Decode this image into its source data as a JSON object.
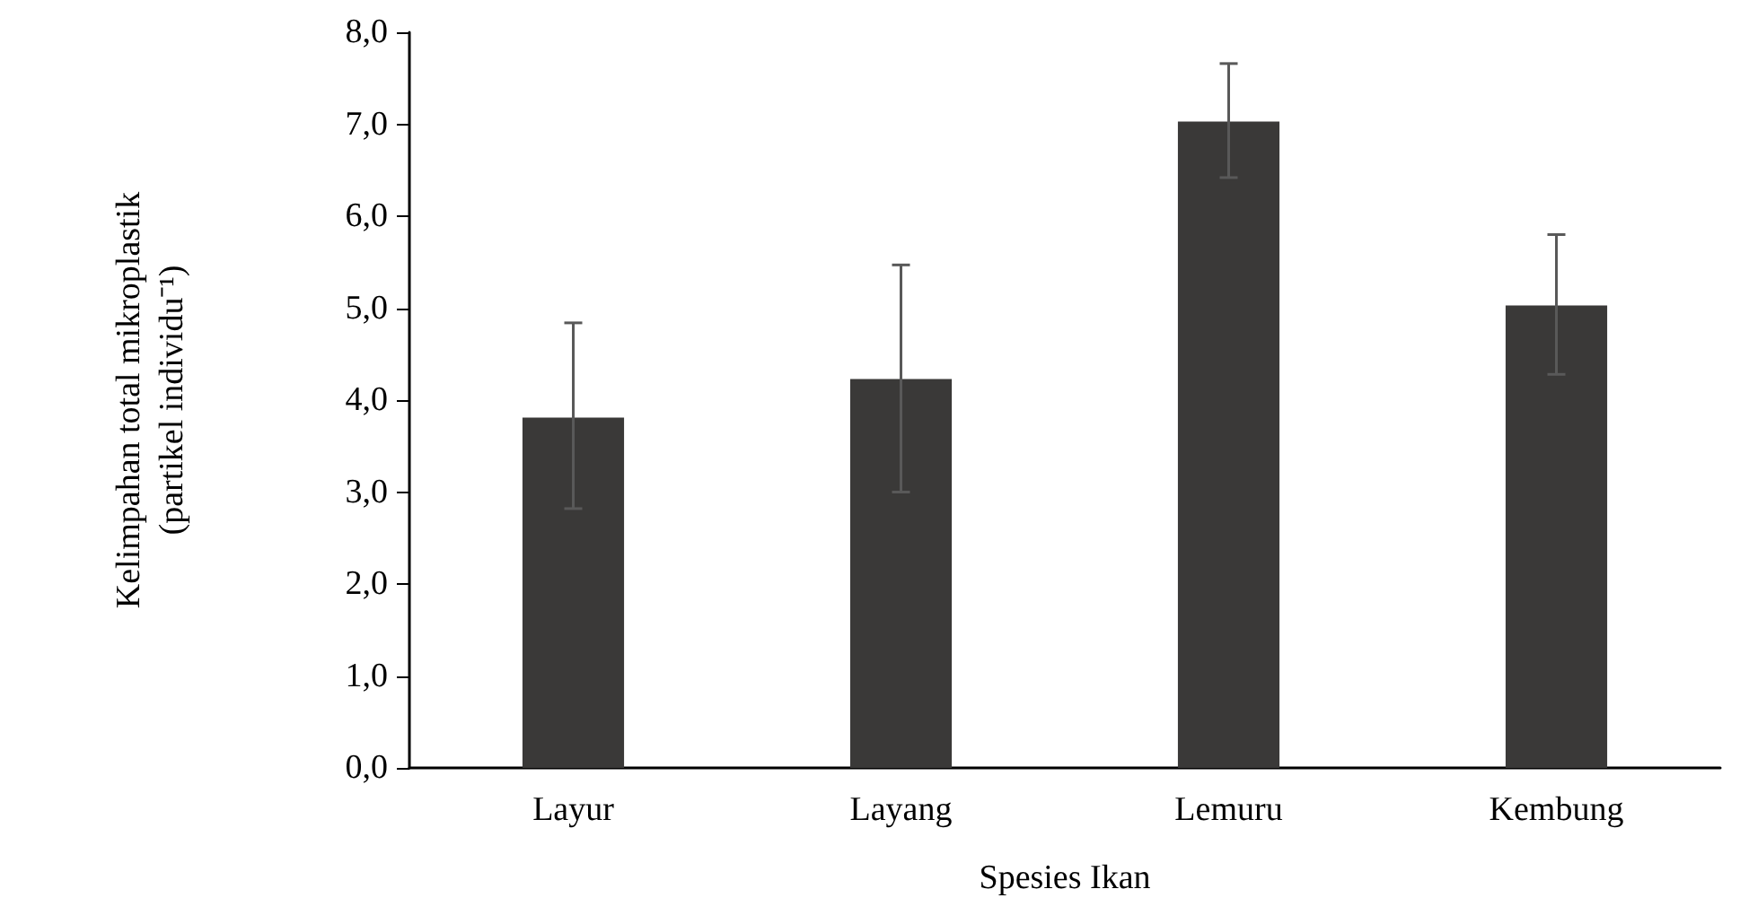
{
  "chart_data": {
    "type": "bar",
    "xlabel": "Spesies Ikan",
    "ylabel": "Kelimpahan total mikroplastik\n(partikel individu⁻¹)",
    "categories": [
      "Layur",
      "Layang",
      "Lemuru",
      "Kembung"
    ],
    "values": [
      3.81,
      4.23,
      7.03,
      5.03
    ],
    "errors": [
      [
        2.82,
        4.84
      ],
      [
        3.0,
        5.47
      ],
      [
        6.42,
        7.66
      ],
      [
        4.28,
        5.8
      ]
    ],
    "color": "#3a3938",
    "ylim": [
      0,
      8
    ],
    "yticks": [
      {
        "value": 0,
        "label": "0,0"
      },
      {
        "value": 1,
        "label": "1,0"
      },
      {
        "value": 2,
        "label": "2,0"
      },
      {
        "value": 3,
        "label": "3,0"
      },
      {
        "value": 4,
        "label": "4,0"
      },
      {
        "value": 5,
        "label": "5,0"
      },
      {
        "value": 6,
        "label": "6,0"
      },
      {
        "value": 7,
        "label": "7,0"
      },
      {
        "value": 8,
        "label": "8,0"
      }
    ],
    "grid": false
  }
}
